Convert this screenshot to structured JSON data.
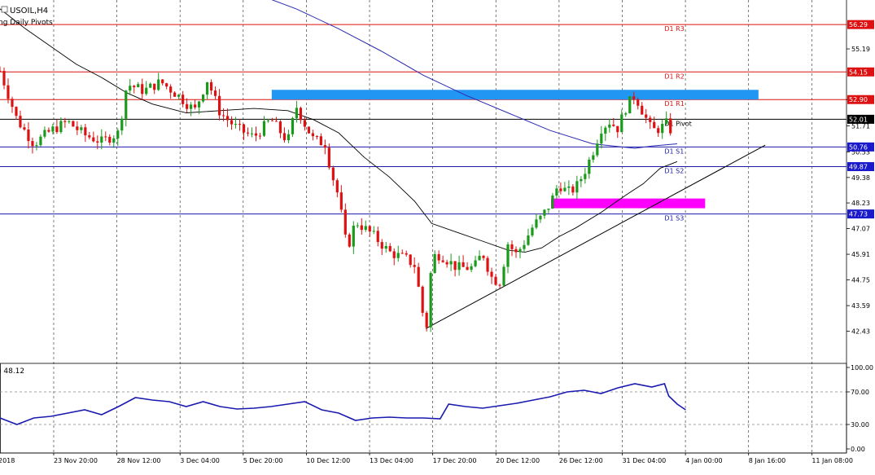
{
  "header": {
    "symbol_label": "USOIL,H4",
    "indicator_label": "ng Daily Pivots"
  },
  "sub_header": {
    "rsi_value_label": ") 48.12"
  },
  "colors": {
    "up_candle": "#1a9a1a",
    "down_candle": "#dd1111",
    "resistance_line": "#dd1111",
    "support_line": "#1a1aaa",
    "pivot_line": "#000000",
    "ma_slow": "#2b2bb0",
    "ma_fast": "#000000",
    "resistance_zone": "#2196f3",
    "support_zone": "#ff00ff",
    "rsi_line": "#1a1ab0",
    "price_badge_red": "#dd1111",
    "price_badge_blue": "#1a1acc",
    "price_badge_black": "#000000"
  },
  "chart_data": {
    "type": "candlestick",
    "symbol": "USOIL",
    "timeframe": "H4",
    "x_ticks": [
      "2018",
      "23 Nov 20:00",
      "28 Nov 12:00",
      "3 Dec 04:00",
      "5 Dec 20:00",
      "10 Dec 12:00",
      "13 Dec 04:00",
      "17 Dec 20:00",
      "20 Dec 12:00",
      "26 Dec 12:00",
      "31 Dec 04:00",
      "4 Jan 00:00",
      "8 Jan 16:00",
      "11 Jan 08:00"
    ],
    "y_ticks": [
      "55.19",
      "52.90",
      "51.71",
      "50.53",
      "49.38",
      "48.23",
      "47.07",
      "45.91",
      "44.75",
      "43.59",
      "42.43"
    ],
    "y_tick_values": [
      55.19,
      52.9,
      51.71,
      50.53,
      49.38,
      48.23,
      47.07,
      45.91,
      44.75,
      43.59,
      42.43
    ],
    "ylim": [
      41.2,
      57.4
    ],
    "pivots": [
      {
        "label": "D1 R3",
        "value": 56.29,
        "price_text": "56.29",
        "kind": "resistance"
      },
      {
        "label": "D1 R2",
        "value": 54.15,
        "price_text": "54.15",
        "kind": "resistance"
      },
      {
        "label": "D1 R1",
        "value": 52.9,
        "price_text": "52.90",
        "kind": "resistance"
      },
      {
        "label": "D1 Pivot",
        "value": 52.01,
        "price_text": "52.01",
        "kind": "pivot"
      },
      {
        "label": "D1 S1",
        "value": 50.76,
        "price_text": "50.76",
        "kind": "support"
      },
      {
        "label": "D1 S2",
        "value": 49.87,
        "price_text": "49.87",
        "kind": "support"
      },
      {
        "label": "D1 S3",
        "value": 47.73,
        "price_text": "47.73",
        "kind": "support"
      }
    ],
    "resistance_zone": {
      "x_start": 0.321,
      "x_end": 0.896,
      "y_low": 52.9,
      "y_high": 53.34
    },
    "support_zone": {
      "x_start": 0.651,
      "x_end": 0.833,
      "y_low": 47.99,
      "y_high": 48.43
    },
    "trendline": {
      "x1": 0.503,
      "y1": 42.55,
      "x2": 0.904,
      "y2": 50.84
    },
    "close_path": [
      [
        0.0,
        54.2
      ],
      [
        0.02,
        52.0
      ],
      [
        0.04,
        50.9
      ],
      [
        0.06,
        51.5
      ],
      [
        0.08,
        51.9
      ],
      [
        0.1,
        51.3
      ],
      [
        0.12,
        51.0
      ],
      [
        0.14,
        51.4
      ],
      [
        0.15,
        53.6
      ],
      [
        0.17,
        53.3
      ],
      [
        0.19,
        53.7
      ],
      [
        0.21,
        53.1
      ],
      [
        0.23,
        52.4
      ],
      [
        0.245,
        53.8
      ],
      [
        0.26,
        52.3
      ],
      [
        0.28,
        51.6
      ],
      [
        0.3,
        51.2
      ],
      [
        0.32,
        52.0
      ],
      [
        0.34,
        51.0
      ],
      [
        0.35,
        52.6
      ],
      [
        0.36,
        51.8
      ],
      [
        0.37,
        51.1
      ],
      [
        0.385,
        50.9
      ],
      [
        0.39,
        49.8
      ],
      [
        0.4,
        48.5
      ],
      [
        0.41,
        46.1
      ],
      [
        0.42,
        47.4
      ],
      [
        0.44,
        46.8
      ],
      [
        0.46,
        46.0
      ],
      [
        0.48,
        45.7
      ],
      [
        0.49,
        45.4
      ],
      [
        0.5,
        43.1
      ],
      [
        0.505,
        42.6
      ],
      [
        0.51,
        45.8
      ],
      [
        0.52,
        45.9
      ],
      [
        0.54,
        45.3
      ],
      [
        0.56,
        45.3
      ],
      [
        0.57,
        46.0
      ],
      [
        0.58,
        44.9
      ],
      [
        0.59,
        44.6
      ],
      [
        0.6,
        46.4
      ],
      [
        0.61,
        45.9
      ],
      [
        0.62,
        46.5
      ],
      [
        0.63,
        47.2
      ],
      [
        0.64,
        47.6
      ],
      [
        0.65,
        48.2
      ],
      [
        0.66,
        49.1
      ],
      [
        0.67,
        48.7
      ],
      [
        0.68,
        48.9
      ],
      [
        0.69,
        49.6
      ],
      [
        0.7,
        50.5
      ],
      [
        0.71,
        51.6
      ],
      [
        0.72,
        51.9
      ],
      [
        0.73,
        51.6
      ],
      [
        0.74,
        52.6
      ],
      [
        0.75,
        53.1
      ],
      [
        0.76,
        52.3
      ],
      [
        0.77,
        51.5
      ],
      [
        0.78,
        51.6
      ],
      [
        0.79,
        51.9
      ],
      [
        0.795,
        51.0
      ]
    ],
    "ma_slow_path": [
      [
        0.28,
        58.0
      ],
      [
        0.35,
        57.0
      ],
      [
        0.4,
        56.1
      ],
      [
        0.45,
        55.1
      ],
      [
        0.5,
        54.0
      ],
      [
        0.55,
        53.1
      ],
      [
        0.6,
        52.3
      ],
      [
        0.65,
        51.5
      ],
      [
        0.7,
        50.9
      ],
      [
        0.75,
        50.7
      ],
      [
        0.77,
        50.8
      ],
      [
        0.8,
        50.9
      ]
    ],
    "ma_fast_path": [
      [
        0.0,
        57.0
      ],
      [
        0.03,
        56.1
      ],
      [
        0.06,
        55.3
      ],
      [
        0.09,
        54.5
      ],
      [
        0.12,
        53.9
      ],
      [
        0.15,
        53.2
      ],
      [
        0.18,
        52.7
      ],
      [
        0.22,
        52.3
      ],
      [
        0.26,
        52.4
      ],
      [
        0.3,
        52.5
      ],
      [
        0.34,
        52.4
      ],
      [
        0.37,
        52.0
      ],
      [
        0.4,
        51.4
      ],
      [
        0.43,
        50.3
      ],
      [
        0.46,
        49.4
      ],
      [
        0.49,
        48.3
      ],
      [
        0.51,
        47.3
      ],
      [
        0.54,
        46.9
      ],
      [
        0.57,
        46.5
      ],
      [
        0.6,
        46.1
      ],
      [
        0.62,
        46.0
      ],
      [
        0.64,
        46.2
      ],
      [
        0.66,
        46.7
      ],
      [
        0.68,
        47.1
      ],
      [
        0.71,
        47.8
      ],
      [
        0.74,
        48.6
      ],
      [
        0.76,
        49.1
      ],
      [
        0.78,
        49.8
      ],
      [
        0.8,
        50.1
      ]
    ],
    "rsi": {
      "value_label": "48.12",
      "value": 48.12,
      "ylim": [
        -5,
        105
      ],
      "y_ticks": [
        "100.00",
        "70.00",
        "30.00",
        "0.00"
      ],
      "y_tick_values": [
        100,
        70,
        30,
        0
      ],
      "levels": [
        70,
        30
      ],
      "path": [
        [
          0.0,
          38
        ],
        [
          0.02,
          30
        ],
        [
          0.04,
          38
        ],
        [
          0.06,
          40
        ],
        [
          0.08,
          44
        ],
        [
          0.1,
          48
        ],
        [
          0.12,
          42
        ],
        [
          0.14,
          52
        ],
        [
          0.16,
          63
        ],
        [
          0.18,
          60
        ],
        [
          0.2,
          58
        ],
        [
          0.22,
          52
        ],
        [
          0.24,
          58
        ],
        [
          0.26,
          52
        ],
        [
          0.28,
          49
        ],
        [
          0.3,
          50
        ],
        [
          0.32,
          52
        ],
        [
          0.34,
          55
        ],
        [
          0.36,
          58
        ],
        [
          0.38,
          48
        ],
        [
          0.4,
          44
        ],
        [
          0.42,
          35
        ],
        [
          0.44,
          38
        ],
        [
          0.46,
          39
        ],
        [
          0.48,
          38
        ],
        [
          0.5,
          38
        ],
        [
          0.52,
          37
        ],
        [
          0.53,
          55
        ],
        [
          0.55,
          52
        ],
        [
          0.57,
          50
        ],
        [
          0.59,
          53
        ],
        [
          0.61,
          56
        ],
        [
          0.63,
          60
        ],
        [
          0.65,
          64
        ],
        [
          0.67,
          70
        ],
        [
          0.69,
          72
        ],
        [
          0.71,
          68
        ],
        [
          0.73,
          75
        ],
        [
          0.75,
          80
        ],
        [
          0.77,
          76
        ],
        [
          0.785,
          80
        ],
        [
          0.79,
          65
        ],
        [
          0.8,
          55
        ],
        [
          0.81,
          48
        ]
      ]
    }
  }
}
